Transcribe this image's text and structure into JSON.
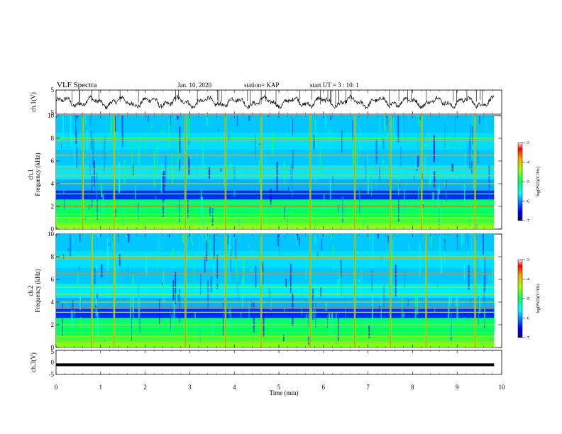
{
  "header": {
    "title": "VLF Spectra",
    "date": "Jan. 10, 2020",
    "station": "station= KAP",
    "start": "start  UT =   3 : 10: 1"
  },
  "chart_data": [
    {
      "type": "line",
      "panel": "ch1-waveform",
      "ylabel": "ch.1(V)",
      "ylim": [
        -5,
        5
      ],
      "yticks": [
        "5",
        "-5"
      ],
      "xlim": [
        0,
        10
      ],
      "note_values": "noisy oscillating waveform around 0 V, amplitude ~1-3 V with spikes up to +5 V"
    },
    {
      "type": "heatmap",
      "panel": "ch1-spectrogram",
      "ylabel": "ch.1\nFrequency  (kHz)",
      "ylim": [
        0,
        10
      ],
      "yticks": [
        "0",
        "2",
        "4",
        "6",
        "8",
        "10"
      ],
      "xlim": [
        0,
        10
      ],
      "colorbar": {
        "label": "log(PSD)(V²/Hz)",
        "range": [
          -7,
          -3
        ],
        "ticks": [
          "-3",
          "-4",
          "-5",
          "-6",
          "-7"
        ]
      },
      "bright_vertical_events_min": [
        0.6,
        1.3,
        2.9,
        3.8,
        4.6,
        5.7,
        6.7,
        7.5,
        8.2,
        9.4
      ],
      "horizontal_lines_khz": [
        0.2,
        0.5,
        1.0,
        1.3,
        2.0,
        2.3,
        3.1,
        4.0,
        4.7,
        5.3,
        6.5,
        7.8,
        8.0
      ]
    },
    {
      "type": "heatmap",
      "panel": "ch2-spectrogram",
      "ylabel": "ch.2\nFrequency  (kHz)",
      "ylim": [
        0,
        10
      ],
      "yticks": [
        "0",
        "2",
        "4",
        "6",
        "8",
        "10"
      ],
      "xlim": [
        0,
        10
      ],
      "colorbar": {
        "label": "log(PSD)(V²/Hz)",
        "range": [
          -7,
          -3
        ],
        "ticks": [
          "-3",
          "-4",
          "-5",
          "-6",
          "-7"
        ]
      },
      "bright_vertical_events_min": [
        0.8,
        1.3,
        2.9,
        3.8,
        4.6,
        5.7,
        6.7,
        7.5,
        8.3,
        9.4
      ],
      "horizontal_lines_khz": [
        0.2,
        0.5,
        1.0,
        1.3,
        2.0,
        3.1,
        3.5,
        4.0,
        4.7,
        5.3,
        6.5,
        7.8,
        8.0
      ]
    },
    {
      "type": "line",
      "panel": "ch3-waveform",
      "ylabel": "ch.3(V)",
      "ylim": [
        -5,
        5
      ],
      "yticks": [
        "5",
        "0",
        "-5"
      ],
      "xlim": [
        0,
        10
      ],
      "values_note": "flat line at about -1 V",
      "y_const": -1
    }
  ],
  "xaxis": {
    "label": "Time  (min)",
    "ticks": [
      "0",
      "1",
      "2",
      "3",
      "4",
      "5",
      "6",
      "7",
      "8",
      "9",
      "10"
    ]
  },
  "colors": {
    "waveform": "#000000",
    "spectro_low": "#0000a0",
    "spectro_mid": "#00ff80",
    "spectro_high": "#ff2000"
  }
}
